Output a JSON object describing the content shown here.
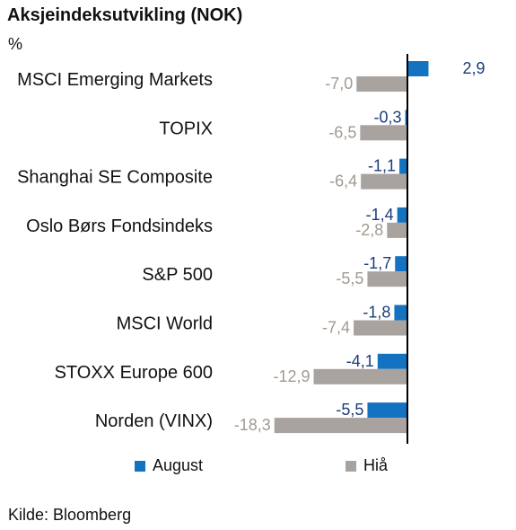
{
  "title": "Aksjeindeksutvikling (NOK)",
  "unit": "%",
  "source": "Kilde: Bloomberg",
  "colors": {
    "series1": "#1473c0",
    "series2": "#a9a39f",
    "axis": "#000000"
  },
  "chart_data": {
    "type": "bar",
    "orientation": "horizontal",
    "decimal_separator": ",",
    "categories": [
      "MSCI Emerging Markets",
      "TOPIX",
      "Shanghai SE Composite",
      "Oslo Børs Fondsindeks",
      "S&P 500",
      "MSCI World",
      "STOXX Europe 600",
      "Norden (VINX)"
    ],
    "series": [
      {
        "name": "August",
        "values": [
          2.9,
          -0.3,
          -1.1,
          -1.4,
          -1.7,
          -1.8,
          -4.1,
          -5.5
        ]
      },
      {
        "name": "Hiå",
        "values": [
          -7.0,
          -6.5,
          -6.4,
          -2.8,
          -5.5,
          -7.4,
          -12.9,
          -18.3
        ]
      }
    ],
    "data_labels": {
      "August": [
        "2,9",
        "-0,3",
        "-1,1",
        "-1,4",
        "-1,7",
        "-1,8",
        "-4,1",
        "-5,5"
      ],
      "Hiå": [
        "-7,0",
        "-6,5",
        "-6,4",
        "-2,8",
        "-5,5",
        "-7,4",
        "-12,9",
        "-18,3"
      ]
    },
    "legend_position": "bottom",
    "grid": false
  }
}
